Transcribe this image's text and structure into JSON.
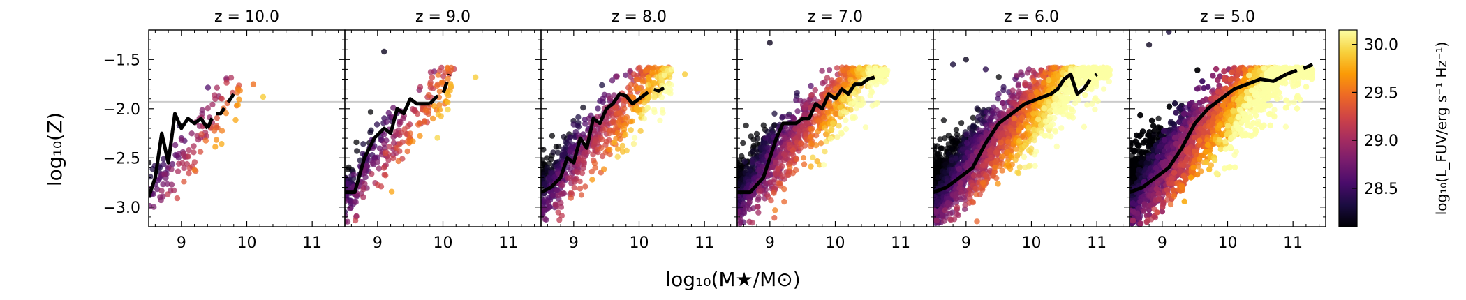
{
  "figure": {
    "ylabel": "log₁₀(Z)",
    "xlabel": "log₁₀(M★/M⊙)",
    "colorbar_label": "log₁₀(L_FUV/erg s⁻¹ Hz⁻¹)"
  },
  "chart_data": [
    {
      "type": "scatter",
      "title": "z = 10.0",
      "xlim": [
        8.5,
        11.5
      ],
      "ylim": [
        -3.2,
        -1.2
      ],
      "xticks": [
        9,
        10,
        11
      ],
      "yticks": [
        -3.0,
        -2.5,
        -2.0,
        -1.5
      ],
      "reference_line_y": -1.93,
      "scatter_cloud": {
        "xmin": 8.5,
        "xmax": 9.9,
        "y_at_xmin": -2.9,
        "y_slope": 0.8,
        "y_spread": 0.55,
        "lum_at_xmin": 28.6,
        "lum_slope": 0.6,
        "n_points": 130
      },
      "outliers": [
        {
          "x": 10.25,
          "y": -1.88,
          "c": 29.9
        },
        {
          "x": 10.1,
          "y": -1.75,
          "c": 29.5
        }
      ],
      "median_solid": {
        "x": [
          8.5,
          8.6,
          8.7,
          8.8,
          8.9,
          9.0,
          9.1,
          9.2,
          9.3,
          9.4
        ],
        "y": [
          -2.9,
          -2.7,
          -2.25,
          -2.55,
          -2.05,
          -2.2,
          -2.1,
          -2.15,
          -2.1,
          -2.2
        ]
      },
      "median_dashed": {
        "x": [
          9.4,
          9.5,
          9.6,
          9.7,
          9.8
        ],
        "y": [
          -2.2,
          -2.05,
          -2.05,
          -1.95,
          -1.85
        ]
      }
    },
    {
      "type": "scatter",
      "title": "z = 9.0",
      "xlim": [
        8.5,
        11.5
      ],
      "ylim": [
        -3.2,
        -1.2
      ],
      "xticks": [
        9,
        10,
        11
      ],
      "yticks": [
        -3.0,
        -2.5,
        -2.0,
        -1.5
      ],
      "reference_line_y": -1.93,
      "scatter_cloud": {
        "xmin": 8.5,
        "xmax": 10.2,
        "y_at_xmin": -2.85,
        "y_slope": 0.7,
        "y_spread": 0.55,
        "lum_at_xmin": 28.4,
        "lum_slope": 0.75,
        "n_points": 280
      },
      "outliers": [
        {
          "x": 9.1,
          "y": -1.42,
          "c": 28.2
        },
        {
          "x": 10.5,
          "y": -1.68,
          "c": 29.9
        }
      ],
      "median_solid": {
        "x": [
          8.5,
          8.65,
          8.8,
          8.95,
          9.1,
          9.2,
          9.3,
          9.4,
          9.5,
          9.6,
          9.7,
          9.8
        ],
        "y": [
          -2.85,
          -2.85,
          -2.5,
          -2.3,
          -2.2,
          -2.25,
          -2.0,
          -2.05,
          -1.9,
          -1.95,
          -1.95,
          -1.95
        ]
      },
      "median_dashed": {
        "x": [
          9.8,
          9.9,
          10.0,
          10.1
        ],
        "y": [
          -1.95,
          -1.88,
          -1.85,
          -1.65
        ]
      }
    },
    {
      "type": "scatter",
      "title": "z = 8.0",
      "xlim": [
        8.5,
        11.5
      ],
      "ylim": [
        -3.2,
        -1.2
      ],
      "xticks": [
        9,
        10,
        11
      ],
      "yticks": [
        -3.0,
        -2.5,
        -2.0,
        -1.5
      ],
      "reference_line_y": -1.93,
      "scatter_cloud": {
        "xmin": 8.5,
        "xmax": 10.5,
        "y_at_xmin": -2.85,
        "y_slope": 0.65,
        "y_spread": 0.6,
        "lum_at_xmin": 28.3,
        "lum_slope": 0.85,
        "n_points": 650
      },
      "outliers": [
        {
          "x": 10.7,
          "y": -1.65,
          "c": 29.9
        }
      ],
      "median_solid": {
        "x": [
          8.5,
          8.65,
          8.8,
          8.9,
          9.0,
          9.1,
          9.2,
          9.3,
          9.4,
          9.5,
          9.6,
          9.7,
          9.8,
          9.9,
          10.0
        ],
        "y": [
          -2.85,
          -2.8,
          -2.7,
          -2.5,
          -2.55,
          -2.3,
          -2.4,
          -2.1,
          -2.15,
          -2.0,
          -1.95,
          -1.85,
          -1.87,
          -1.95,
          -1.9
        ]
      },
      "median_dashed": {
        "x": [
          10.0,
          10.1,
          10.2,
          10.3,
          10.4
        ],
        "y": [
          -1.9,
          -1.85,
          -1.8,
          -1.82,
          -1.78
        ]
      }
    },
    {
      "type": "scatter",
      "title": "z = 7.0",
      "xlim": [
        8.5,
        11.5
      ],
      "ylim": [
        -3.2,
        -1.2
      ],
      "xticks": [
        9,
        10,
        11
      ],
      "yticks": [
        -3.0,
        -2.5,
        -2.0,
        -1.5
      ],
      "reference_line_y": -1.93,
      "scatter_cloud": {
        "xmin": 8.5,
        "xmax": 10.8,
        "y_at_xmin": -2.85,
        "y_slope": 0.62,
        "y_spread": 0.6,
        "lum_at_xmin": 28.2,
        "lum_slope": 0.9,
        "n_points": 1100
      },
      "outliers": [
        {
          "x": 9.0,
          "y": -1.33,
          "c": 28.2
        }
      ],
      "median_solid": {
        "x": [
          8.5,
          8.7,
          8.9,
          9.0,
          9.1,
          9.2,
          9.3,
          9.4,
          9.5,
          9.6,
          9.7,
          9.8,
          9.9,
          10.0,
          10.1,
          10.2,
          10.3,
          10.4,
          10.5,
          10.6
        ],
        "y": [
          -2.85,
          -2.85,
          -2.7,
          -2.5,
          -2.3,
          -2.15,
          -2.15,
          -2.15,
          -2.1,
          -2.1,
          -1.95,
          -2.0,
          -1.85,
          -1.9,
          -1.8,
          -1.85,
          -1.75,
          -1.75,
          -1.7,
          -1.68
        ]
      },
      "median_dashed": {
        "x": [],
        "y": []
      }
    },
    {
      "type": "scatter",
      "title": "z = 6.0",
      "xlim": [
        8.5,
        11.5
      ],
      "ylim": [
        -3.2,
        -1.2
      ],
      "xticks": [
        9,
        10,
        11
      ],
      "yticks": [
        -3.0,
        -2.5,
        -2.0,
        -1.5
      ],
      "reference_line_y": -1.93,
      "scatter_cloud": {
        "xmin": 8.5,
        "xmax": 11.2,
        "y_at_xmin": -2.85,
        "y_slope": 0.55,
        "y_spread": 0.65,
        "lum_at_xmin": 28.1,
        "lum_slope": 0.95,
        "n_points": 2200
      },
      "outliers": [
        {
          "x": 8.8,
          "y": -1.55,
          "c": 28.3
        },
        {
          "x": 9.0,
          "y": -1.5,
          "c": 28.2
        },
        {
          "x": 9.3,
          "y": -1.6,
          "c": 28.4
        }
      ],
      "median_solid": {
        "x": [
          8.5,
          8.7,
          8.9,
          9.1,
          9.3,
          9.5,
          9.7,
          9.9,
          10.1,
          10.3,
          10.4,
          10.5,
          10.6,
          10.7,
          10.8
        ],
        "y": [
          -2.85,
          -2.8,
          -2.7,
          -2.6,
          -2.35,
          -2.15,
          -2.05,
          -1.95,
          -1.9,
          -1.85,
          -1.8,
          -1.7,
          -1.65,
          -1.85,
          -1.8
        ]
      },
      "median_dashed": {
        "x": [
          10.8,
          10.9,
          11.0
        ],
        "y": [
          -1.8,
          -1.7,
          -1.65
        ]
      }
    },
    {
      "type": "scatter",
      "title": "z = 5.0",
      "xlim": [
        8.5,
        11.5
      ],
      "ylim": [
        -3.2,
        -1.2
      ],
      "xticks": [
        9,
        10,
        11
      ],
      "yticks": [
        -3.0,
        -2.5,
        -2.0,
        -1.5
      ],
      "reference_line_y": -1.93,
      "scatter_cloud": {
        "xmin": 8.5,
        "xmax": 11.3,
        "y_at_xmin": -2.85,
        "y_slope": 0.55,
        "y_spread": 0.7,
        "lum_at_xmin": 28.1,
        "lum_slope": 1.0,
        "n_points": 3500
      },
      "outliers": [
        {
          "x": 9.1,
          "y": -1.22,
          "c": 28.3
        },
        {
          "x": 8.8,
          "y": -1.35,
          "c": 28.2
        }
      ],
      "median_solid": {
        "x": [
          8.5,
          8.7,
          8.9,
          9.1,
          9.3,
          9.5,
          9.7,
          9.9,
          10.1,
          10.3,
          10.5,
          10.7,
          10.9
        ],
        "y": [
          -2.85,
          -2.8,
          -2.7,
          -2.6,
          -2.4,
          -2.15,
          -2.0,
          -1.9,
          -1.8,
          -1.75,
          -1.7,
          -1.72,
          -1.65
        ]
      },
      "median_dashed": {
        "x": [
          10.9,
          11.1,
          11.2,
          11.3
        ],
        "y": [
          -1.65,
          -1.6,
          -1.58,
          -1.55
        ]
      }
    }
  ],
  "colorbar": {
    "vmin": 28.1,
    "vmax": 30.15,
    "ticks": [
      28.5,
      29.0,
      29.5,
      30.0
    ],
    "tick_labels": [
      "28.5",
      "29.0",
      "29.5",
      "30.0"
    ],
    "colormap": "inferno",
    "colors": [
      "#000004",
      "#1b0c41",
      "#4a0c6b",
      "#781c6d",
      "#a52c60",
      "#cf4446",
      "#ed6925",
      "#fb9b06",
      "#f7d13d",
      "#fcffa4"
    ]
  },
  "style": {
    "median_color": "#000000",
    "reference_line_color": "#cccccc"
  }
}
